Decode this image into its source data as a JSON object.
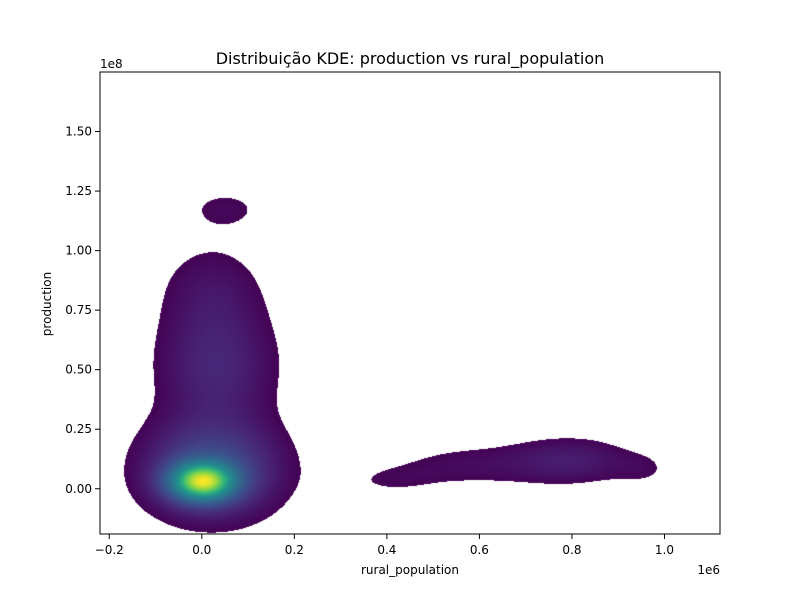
{
  "chart_data": {
    "type": "heatmap",
    "title": "Distribuição KDE: production vs rural_population",
    "xlabel": "rural_population",
    "ylabel": "production",
    "x_offset_label": "1e6",
    "y_offset_label": "1e8",
    "xlim": [
      -0.22,
      1.12
    ],
    "ylim": [
      -0.19,
      1.75
    ],
    "x_ticks": [
      {
        "value": -0.2,
        "label": "−0.2"
      },
      {
        "value": 0.0,
        "label": "0.0"
      },
      {
        "value": 0.2,
        "label": "0.2"
      },
      {
        "value": 0.4,
        "label": "0.4"
      },
      {
        "value": 0.6,
        "label": "0.6"
      },
      {
        "value": 0.8,
        "label": "0.8"
      },
      {
        "value": 1.0,
        "label": "1.0"
      }
    ],
    "y_ticks": [
      {
        "value": 0.0,
        "label": "0.00"
      },
      {
        "value": 0.25,
        "label": "0.25"
      },
      {
        "value": 0.5,
        "label": "0.50"
      },
      {
        "value": 0.75,
        "label": "0.75"
      },
      {
        "value": 1.0,
        "label": "1.00"
      },
      {
        "value": 1.25,
        "label": "1.25"
      },
      {
        "value": 1.5,
        "label": "1.50"
      }
    ],
    "colormap": "viridis",
    "grid": false,
    "kernels": [
      {
        "x": 0.0,
        "y": 0.03,
        "sx": 0.048,
        "sy": 0.055,
        "w": 1.0
      },
      {
        "x": 0.02,
        "y": 0.08,
        "sx": 0.1,
        "sy": 0.14,
        "w": 0.35
      },
      {
        "x": 0.03,
        "y": 0.52,
        "sx": 0.09,
        "sy": 0.18,
        "w": 0.18
      },
      {
        "x": 0.02,
        "y": 0.85,
        "sx": 0.08,
        "sy": 0.14,
        "w": 0.09
      },
      {
        "x": 0.05,
        "y": 1.18,
        "sx": 0.07,
        "sy": 0.07,
        "w": 0.07
      },
      {
        "x": 0.8,
        "y": 0.12,
        "sx": 0.09,
        "sy": 0.07,
        "w": 0.13
      },
      {
        "x": 0.58,
        "y": 0.1,
        "sx": 0.13,
        "sy": 0.07,
        "w": 0.08
      },
      {
        "x": 0.4,
        "y": 0.03,
        "sx": 0.08,
        "sy": 0.05,
        "w": 0.05
      },
      {
        "x": 0.96,
        "y": 0.08,
        "sx": 0.05,
        "sy": 0.06,
        "w": 0.05
      }
    ],
    "density_threshold": 0.045
  }
}
